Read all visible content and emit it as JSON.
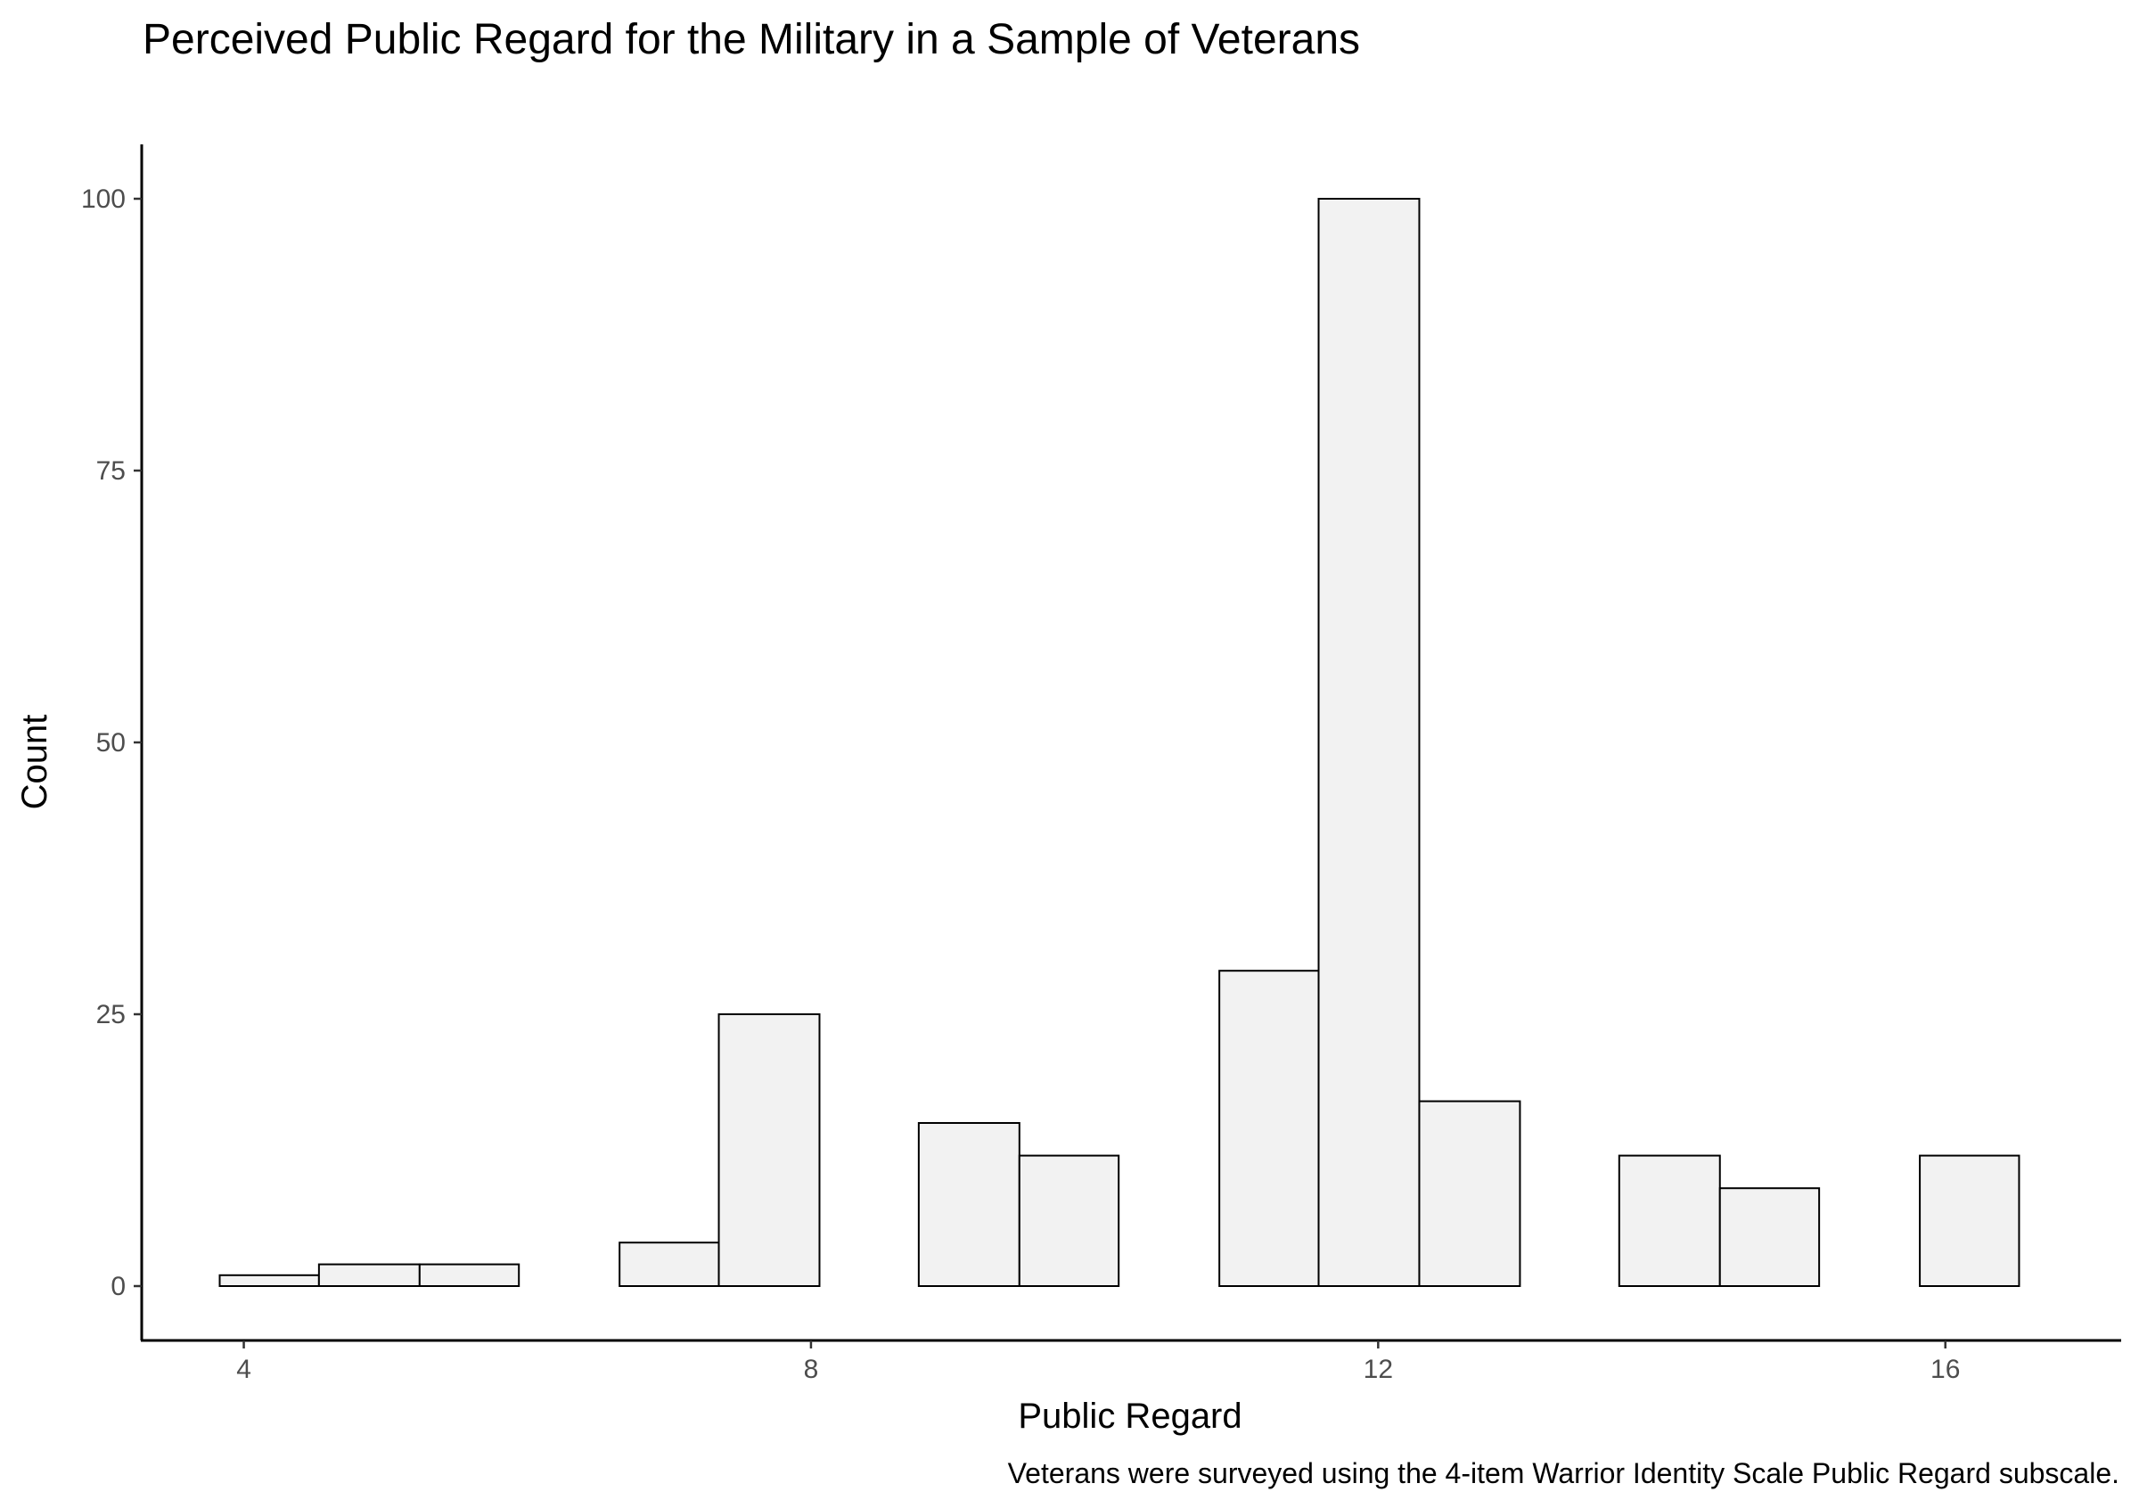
{
  "chart_data": {
    "type": "bar",
    "title": "Perceived Public Regard for the Military in a Sample of Veterans",
    "xlabel": "Public Regard",
    "ylabel": "Count",
    "caption": "Veterans were surveyed using the 4-item Warrior Identity Scale Public Regard subscale.",
    "bin_width": 0.705,
    "bins": [
      {
        "x_min": 3.83,
        "x_max": 4.53,
        "count": 1
      },
      {
        "x_min": 4.53,
        "x_max": 5.24,
        "count": 2
      },
      {
        "x_min": 5.24,
        "x_max": 5.94,
        "count": 2
      },
      {
        "x_min": 5.94,
        "x_max": 6.65,
        "count": 0
      },
      {
        "x_min": 6.65,
        "x_max": 7.35,
        "count": 4
      },
      {
        "x_min": 7.35,
        "x_max": 8.06,
        "count": 25
      },
      {
        "x_min": 8.06,
        "x_max": 8.76,
        "count": 0
      },
      {
        "x_min": 8.76,
        "x_max": 9.47,
        "count": 15
      },
      {
        "x_min": 9.47,
        "x_max": 10.17,
        "count": 12
      },
      {
        "x_min": 10.17,
        "x_max": 10.88,
        "count": 0
      },
      {
        "x_min": 10.88,
        "x_max": 11.58,
        "count": 29
      },
      {
        "x_min": 11.58,
        "x_max": 12.29,
        "count": 100
      },
      {
        "x_min": 12.29,
        "x_max": 13.0,
        "count": 17
      },
      {
        "x_min": 13.0,
        "x_max": 13.7,
        "count": 0
      },
      {
        "x_min": 13.7,
        "x_max": 14.41,
        "count": 12
      },
      {
        "x_min": 14.41,
        "x_max": 15.11,
        "count": 9
      },
      {
        "x_min": 15.11,
        "x_max": 15.82,
        "count": 0
      },
      {
        "x_min": 15.82,
        "x_max": 16.52,
        "count": 12
      }
    ],
    "xlim": [
      3.28,
      17.24
    ],
    "ylim": [
      -5,
      105
    ],
    "x_ticks": [
      4,
      8,
      12,
      16
    ],
    "y_ticks": [
      0,
      25,
      50,
      75,
      100
    ],
    "grid": false,
    "bar_fill": "#f2f2f2",
    "bar_stroke": "#000000"
  }
}
